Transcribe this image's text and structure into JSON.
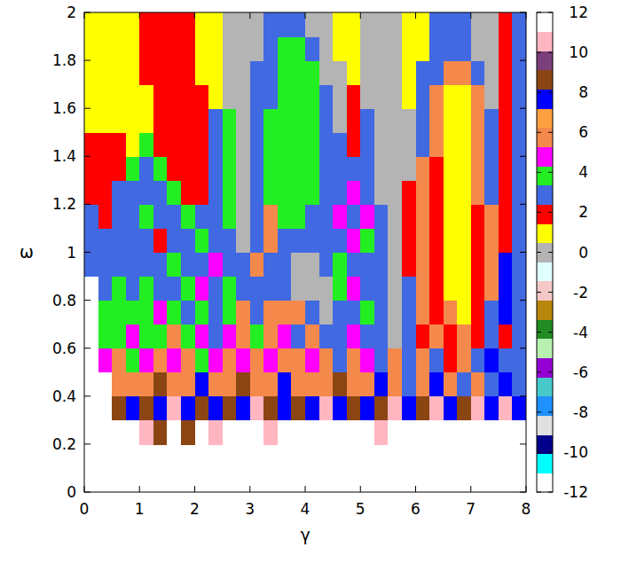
{
  "chart_data": {
    "type": "heatmap",
    "x_label": "γ",
    "y_label": "ω",
    "xlim": [
      0,
      8
    ],
    "ylim": [
      0,
      2
    ],
    "xticks": [
      0,
      1,
      2,
      3,
      4,
      5,
      6,
      7,
      8
    ],
    "yticks": [
      0,
      0.2,
      0.4,
      0.6,
      0.8,
      1,
      1.2,
      1.4,
      1.6,
      1.8,
      2
    ],
    "x_bins": [
      0,
      0.25,
      0.5,
      0.75,
      1,
      1.25,
      1.5,
      1.75,
      2,
      2.25,
      2.5,
      2.75,
      3,
      3.25,
      3.5,
      3.75,
      4,
      4.25,
      4.5,
      4.75,
      5,
      5.25,
      5.5,
      5.75,
      6,
      6.25,
      6.5,
      6.75,
      7,
      7.25,
      7.5,
      7.75,
      8
    ],
    "y_bins": [
      0,
      0.1,
      0.2,
      0.3,
      0.4,
      0.5,
      0.6,
      0.7,
      0.8,
      0.9,
      1,
      1.1,
      1.2,
      1.3,
      1.4,
      1.5,
      1.6,
      1.7,
      1.8,
      1.9,
      2
    ],
    "cells": [
      [
        12,
        12,
        12,
        12,
        12,
        12,
        12,
        12,
        12,
        12,
        12,
        12,
        12,
        12,
        12,
        12,
        12,
        12,
        12,
        12,
        12,
        12,
        12,
        12,
        12,
        12,
        12,
        12,
        12,
        12,
        12,
        12
      ],
      [
        12,
        12,
        12,
        12,
        12,
        12,
        12,
        12,
        12,
        12,
        12,
        12,
        12,
        12,
        12,
        12,
        12,
        12,
        12,
        12,
        12,
        12,
        12,
        12,
        12,
        12,
        12,
        12,
        12,
        12,
        12,
        12
      ],
      [
        12,
        12,
        12,
        12,
        11,
        9,
        12,
        9,
        12,
        11,
        12,
        12,
        12,
        11,
        12,
        12,
        12,
        12,
        12,
        12,
        12,
        11,
        12,
        12,
        12,
        12,
        12,
        12,
        12,
        12,
        12,
        12
      ],
      [
        12,
        12,
        9,
        8,
        9,
        8,
        11,
        8,
        9,
        8,
        9,
        8,
        11,
        9,
        8,
        9,
        8,
        11,
        8,
        9,
        8,
        9,
        11,
        8,
        9,
        11,
        8,
        9,
        11,
        8,
        11,
        8
      ],
      [
        12,
        12,
        6,
        6,
        6,
        9,
        6,
        6,
        8,
        6,
        6,
        9,
        6,
        6,
        8,
        6,
        6,
        6,
        9,
        6,
        6,
        8,
        6,
        3,
        6,
        8,
        6,
        3,
        6,
        3,
        8,
        3
      ],
      [
        12,
        5,
        6,
        4,
        5,
        6,
        5,
        6,
        4,
        5,
        6,
        5,
        6,
        5,
        6,
        6,
        5,
        6,
        3,
        6,
        5,
        3,
        6,
        3,
        6,
        3,
        2,
        6,
        3,
        8,
        3,
        3
      ],
      [
        12,
        4,
        4,
        5,
        4,
        4,
        6,
        4,
        5,
        3,
        5,
        6,
        4,
        6,
        5,
        3,
        6,
        3,
        3,
        5,
        3,
        3,
        0,
        3,
        2,
        6,
        2,
        6,
        2,
        3,
        2,
        3
      ],
      [
        12,
        4,
        4,
        4,
        4,
        5,
        4,
        3,
        4,
        3,
        4,
        6,
        3,
        6,
        6,
        6,
        3,
        0,
        3,
        3,
        4,
        3,
        0,
        3,
        6,
        2,
        6,
        1,
        2,
        3,
        8,
        3
      ],
      [
        12,
        3,
        4,
        3,
        4,
        3,
        3,
        4,
        5,
        3,
        4,
        3,
        3,
        3,
        3,
        0,
        0,
        0,
        4,
        5,
        3,
        3,
        0,
        3,
        6,
        2,
        1,
        1,
        2,
        6,
        8,
        3
      ],
      [
        3,
        3,
        3,
        3,
        3,
        3,
        4,
        3,
        3,
        5,
        3,
        3,
        6,
        3,
        3,
        0,
        0,
        3,
        4,
        3,
        3,
        3,
        0,
        2,
        6,
        2,
        1,
        1,
        2,
        6,
        8,
        3
      ],
      [
        3,
        3,
        3,
        3,
        3,
        2,
        3,
        3,
        4,
        3,
        3,
        0,
        3,
        6,
        3,
        3,
        3,
        3,
        3,
        5,
        4,
        3,
        0,
        2,
        6,
        2,
        1,
        1,
        2,
        6,
        2,
        3
      ],
      [
        3,
        2,
        3,
        3,
        4,
        3,
        3,
        4,
        3,
        3,
        4,
        0,
        3,
        6,
        4,
        4,
        3,
        3,
        5,
        3,
        5,
        3,
        0,
        2,
        6,
        2,
        1,
        1,
        2,
        6,
        2,
        3
      ],
      [
        2,
        2,
        3,
        3,
        3,
        3,
        4,
        2,
        2,
        3,
        4,
        0,
        3,
        4,
        4,
        4,
        4,
        3,
        3,
        5,
        3,
        0,
        0,
        2,
        6,
        2,
        1,
        1,
        6,
        3,
        2,
        3
      ],
      [
        2,
        2,
        2,
        4,
        3,
        4,
        2,
        2,
        2,
        3,
        4,
        0,
        3,
        4,
        4,
        4,
        4,
        3,
        3,
        3,
        3,
        0,
        0,
        0,
        6,
        2,
        1,
        1,
        6,
        3,
        2,
        3
      ],
      [
        2,
        2,
        2,
        1,
        4,
        2,
        2,
        2,
        2,
        3,
        4,
        0,
        3,
        4,
        4,
        4,
        4,
        3,
        3,
        2,
        3,
        0,
        0,
        0,
        3,
        6,
        1,
        1,
        6,
        3,
        2,
        3
      ],
      [
        1,
        1,
        1,
        1,
        1,
        2,
        2,
        2,
        2,
        3,
        4,
        0,
        3,
        4,
        4,
        4,
        4,
        3,
        0,
        2,
        3,
        0,
        0,
        0,
        3,
        6,
        1,
        1,
        6,
        3,
        2,
        3
      ],
      [
        1,
        1,
        1,
        1,
        1,
        2,
        2,
        2,
        2,
        1,
        0,
        0,
        3,
        3,
        4,
        4,
        4,
        3,
        0,
        2,
        0,
        0,
        0,
        1,
        3,
        6,
        1,
        1,
        6,
        0,
        2,
        3
      ],
      [
        1,
        1,
        1,
        1,
        2,
        2,
        2,
        2,
        1,
        1,
        0,
        0,
        3,
        3,
        4,
        4,
        4,
        0,
        0,
        1,
        0,
        0,
        0,
        1,
        3,
        3,
        6,
        6,
        3,
        0,
        2,
        3
      ],
      [
        1,
        1,
        1,
        1,
        2,
        2,
        2,
        2,
        1,
        1,
        0,
        0,
        0,
        3,
        4,
        4,
        3,
        0,
        1,
        1,
        0,
        0,
        0,
        1,
        1,
        3,
        3,
        3,
        0,
        0,
        2,
        3
      ],
      [
        1,
        1,
        1,
        1,
        2,
        2,
        2,
        2,
        1,
        1,
        0,
        0,
        0,
        3,
        3,
        3,
        0,
        0,
        1,
        1,
        0,
        0,
        0,
        1,
        1,
        3,
        3,
        3,
        0,
        0,
        2,
        3
      ]
    ],
    "colorbar": {
      "range": [
        -12,
        12
      ],
      "ticks": [
        -12,
        -10,
        -8,
        -6,
        -4,
        -2,
        0,
        2,
        4,
        6,
        8,
        10,
        12
      ],
      "colors": [
        "#ffffff",
        "#00ffff",
        "#00008b",
        "#e0e0e0",
        "#1e90ff",
        "#48c9c9",
        "#9400d3",
        "#b8f0b0",
        "#228b22",
        "#b8860b",
        "#f5c8c8",
        "#e0ffff",
        "#b4b4b4",
        "#ffff00",
        "#ff0000",
        "#4169e1",
        "#22ee22",
        "#ff00ff",
        "#f4894b",
        "#ffa040",
        "#0000ff",
        "#8b4513",
        "#7b3f7b",
        "#ffb6c1",
        "#ffffff"
      ]
    }
  }
}
